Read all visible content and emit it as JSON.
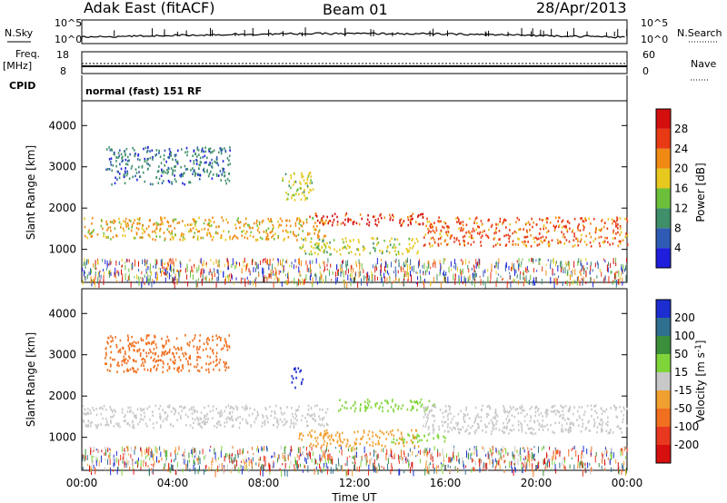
{
  "header": {
    "station": "Adak East (fitACF)",
    "beam": "Beam 01",
    "date": "28/Apr/2013"
  },
  "strips": {
    "nsky_label": "N.Sky",
    "nsky_ticks": [
      "10^5",
      "10^0"
    ],
    "nsearch_label": "N.Search",
    "freq_label": "Freq.",
    "freq_unit": "[MHz]",
    "freq_ticks": [
      "18",
      "8"
    ],
    "nave_label": "Nave",
    "nave_ticks": [
      "60",
      "0"
    ],
    "cpid_label": "CPID",
    "cpid_value": "normal (fast) 151 RF"
  },
  "chart_data": [
    {
      "type": "heatmap",
      "panel": "power",
      "ylabel": "Slant Range [km]",
      "y_ticks": [
        1000,
        2000,
        3000,
        4000
      ],
      "ylim": [
        200,
        4600
      ],
      "x_ticks": [
        "00:00",
        "04:00",
        "08:00",
        "12:00",
        "16:00",
        "20:00",
        "00:00"
      ],
      "xlim_hours": [
        0,
        24
      ],
      "colorbar": {
        "label": "Power [dB]",
        "ticks": [
          4,
          8,
          12,
          16,
          20,
          24,
          28
        ],
        "colors": [
          "#1e1edc",
          "#2f5bb4",
          "#3f8f6a",
          "#6cbf3a",
          "#e6c81e",
          "#f08a14",
          "#e83a14",
          "#d40f0f"
        ]
      },
      "bands": [
        {
          "t0": 0.0,
          "t1": 10.8,
          "r0": 1250,
          "r1": 1800,
          "peak_db": 22
        },
        {
          "t0": 1.0,
          "t1": 6.5,
          "r0": 2600,
          "r1": 3500,
          "peak_db": 10
        },
        {
          "t0": 8.8,
          "t1": 10.2,
          "r0": 2200,
          "r1": 2900,
          "peak_db": 18
        },
        {
          "t0": 10.0,
          "t1": 15.0,
          "r0": 1600,
          "r1": 1900,
          "peak_db": 28
        },
        {
          "t0": 9.5,
          "t1": 14.8,
          "r0": 900,
          "r1": 1300,
          "peak_db": 18
        },
        {
          "t0": 3.5,
          "t1": 4.4,
          "r0": 400,
          "r1": 700,
          "peak_db": 24
        },
        {
          "t0": 15.0,
          "t1": 24.0,
          "r0": 1100,
          "r1": 1800,
          "peak_db": 24
        }
      ]
    },
    {
      "type": "heatmap",
      "panel": "velocity",
      "ylabel": "Slant Range [km]",
      "y_ticks": [
        1000,
        2000,
        3000,
        4000
      ],
      "ylim": [
        200,
        4600
      ],
      "x_ticks": [
        "00:00",
        "04:00",
        "08:00",
        "12:00",
        "16:00",
        "20:00",
        "00:00"
      ],
      "xlabel": "Time UT",
      "xlim_hours": [
        0,
        24
      ],
      "colorbar": {
        "label": "Velocity [m s^-1]",
        "ticks": [
          200,
          100,
          50,
          15,
          -15,
          -50,
          -100,
          -200
        ],
        "colors": [
          "#1c2ecf",
          "#2f6f8f",
          "#3b8f3b",
          "#7fd43a",
          "#c8c8c8",
          "#f0a030",
          "#f07020",
          "#e83820",
          "#d80f0f"
        ]
      },
      "bands": [
        {
          "t0": 0.0,
          "t1": 10.8,
          "r0": 1250,
          "r1": 1800,
          "vel": 0
        },
        {
          "t0": 1.0,
          "t1": 6.5,
          "r0": 2600,
          "r1": 3500,
          "vel": -60
        },
        {
          "t0": 9.2,
          "t1": 9.7,
          "r0": 2200,
          "r1": 2700,
          "vel": 150
        },
        {
          "t0": 11.2,
          "t1": 15.5,
          "r0": 1650,
          "r1": 1950,
          "vel": 40
        },
        {
          "t0": 9.5,
          "t1": 14.8,
          "r0": 800,
          "r1": 1200,
          "vel": -40
        },
        {
          "t0": 13.5,
          "t1": 16.0,
          "r0": 900,
          "r1": 1100,
          "vel": 40
        },
        {
          "t0": 15.0,
          "t1": 24.0,
          "r0": 1100,
          "r1": 1800,
          "vel": 0
        }
      ]
    }
  ]
}
